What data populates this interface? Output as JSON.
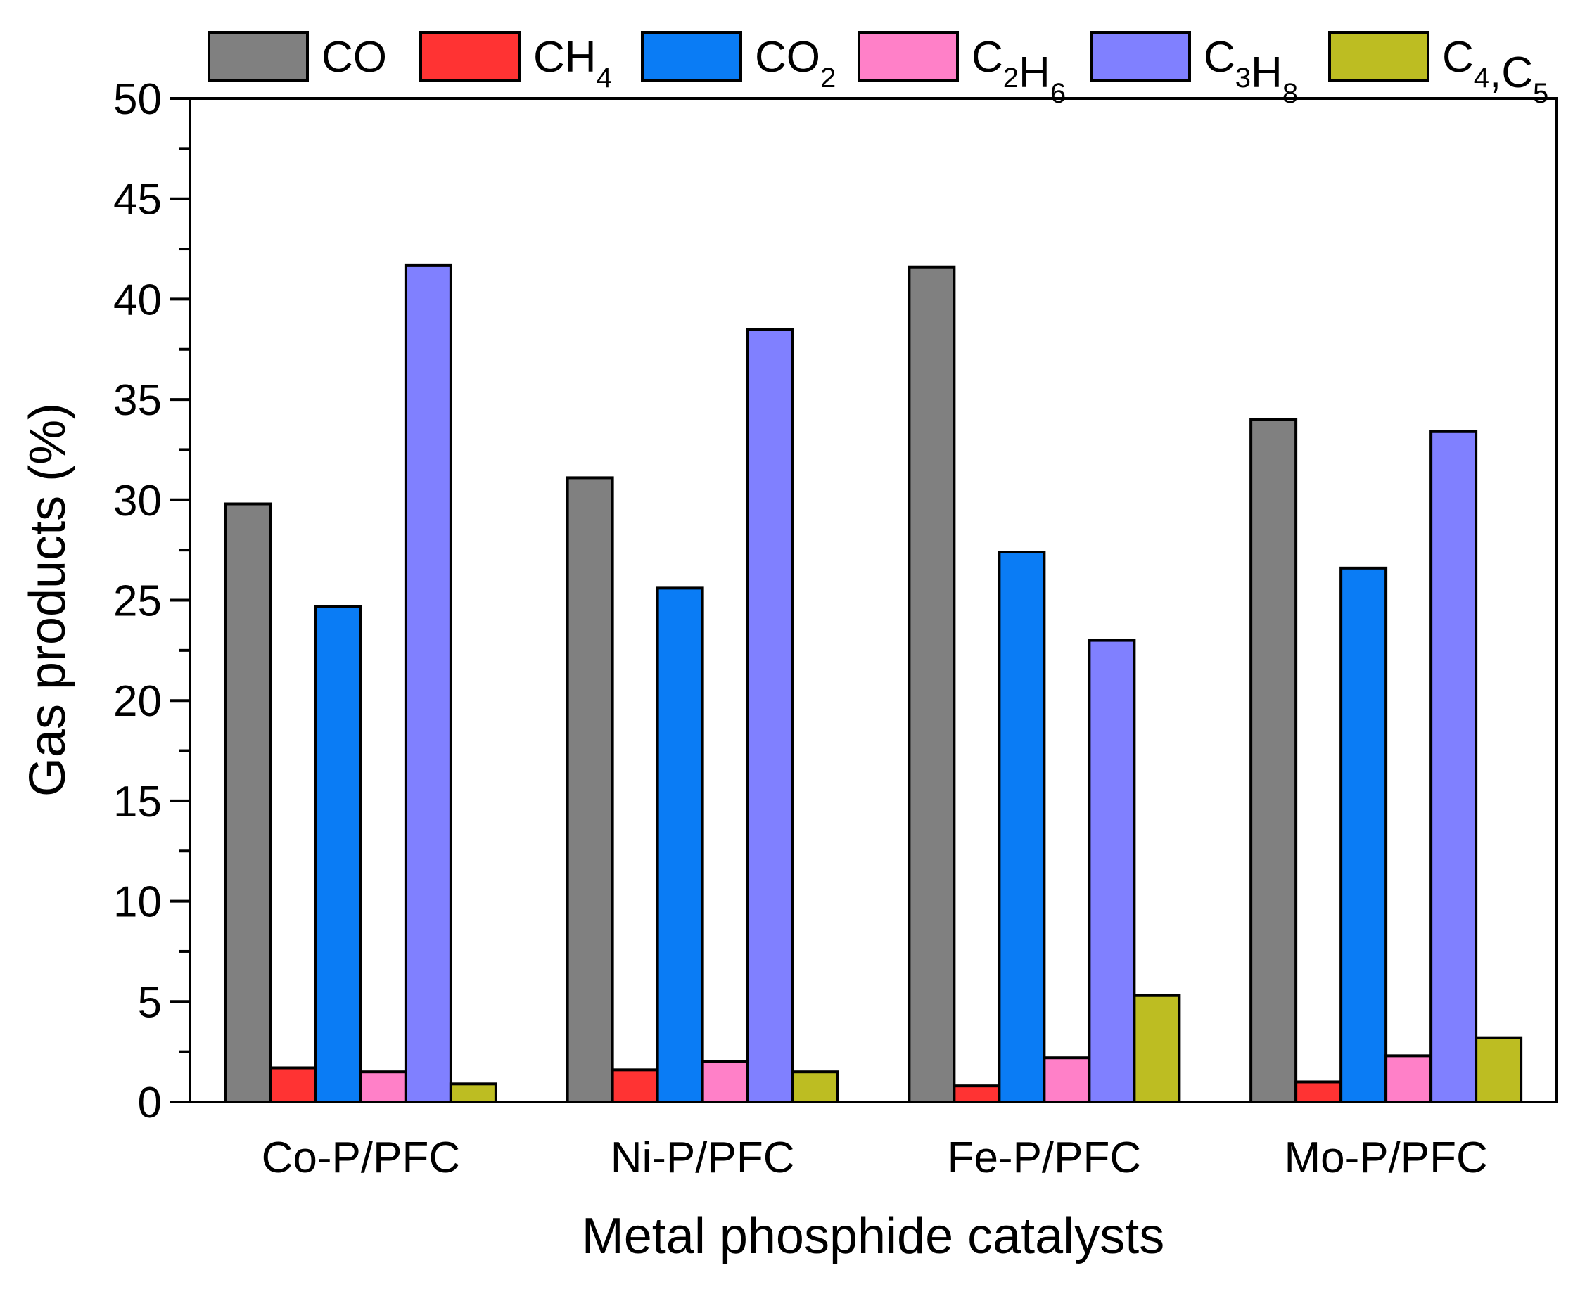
{
  "chart_data": {
    "type": "bar",
    "title": "",
    "xlabel": "Metal phosphide catalysts",
    "ylabel": "Gas products (%)",
    "ylim": [
      0,
      50
    ],
    "yticks": [
      0,
      5,
      10,
      15,
      20,
      25,
      30,
      35,
      40,
      45,
      50
    ],
    "categories": [
      "Co-P/PFC",
      "Ni-P/PFC",
      "Fe-P/PFC",
      "Mo-P/PFC"
    ],
    "legend_position": "top",
    "series": [
      {
        "name": "CO",
        "label_main": [
          "CO"
        ],
        "label_sub": [
          ""
        ],
        "color": "#808080",
        "values": [
          29.8,
          31.1,
          41.6,
          34.0
        ]
      },
      {
        "name": "CH4",
        "label_main": [
          "CH"
        ],
        "label_sub": [
          "4"
        ],
        "color": "#ff3333",
        "values": [
          1.7,
          1.6,
          0.8,
          1.0
        ]
      },
      {
        "name": "CO2",
        "label_main": [
          "CO"
        ],
        "label_sub": [
          "2"
        ],
        "color": "#0a7cf5",
        "values": [
          24.7,
          25.6,
          27.4,
          26.6
        ]
      },
      {
        "name": "C2H6",
        "label_main": [
          "C",
          "H"
        ],
        "label_sub": [
          "2",
          "6"
        ],
        "color": "#ff80c8",
        "values": [
          1.5,
          2.0,
          2.2,
          2.3
        ]
      },
      {
        "name": "C3H8",
        "label_main": [
          "C",
          "H"
        ],
        "label_sub": [
          "3",
          "8"
        ],
        "color": "#8080ff",
        "values": [
          41.7,
          38.5,
          23.0,
          33.4
        ]
      },
      {
        "name": "C4,C5",
        "label_main": [
          "C",
          ",C"
        ],
        "label_sub": [
          "4",
          "5"
        ],
        "color": "#bdbd22",
        "values": [
          0.9,
          1.5,
          5.3,
          3.2
        ]
      }
    ]
  }
}
